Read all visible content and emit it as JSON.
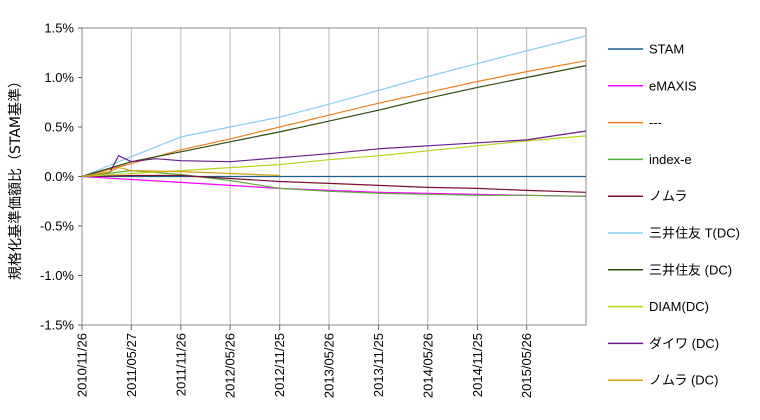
{
  "chart_data": {
    "type": "line",
    "title": "",
    "xlabel": "",
    "ylabel": "規格化基準価額比（STAM基準）",
    "ylim": [
      -1.5,
      1.5
    ],
    "y_ticks": [
      1.5,
      1.0,
      0.5,
      0.0,
      -0.5,
      -1.0,
      -1.5
    ],
    "y_tick_labels": [
      "1.5%",
      "1.0%",
      "0.5%",
      "0.0%",
      "-0.5%",
      "-1.0%",
      "-1.5%"
    ],
    "x_tick_labels": [
      "2010/11/26",
      "2011/05/27",
      "2011/11/26",
      "2012/05/26",
      "2012/11/25",
      "2013/05/26",
      "2013/11/25",
      "2014/05/26",
      "2014/11/25",
      "2015/05/26"
    ],
    "x_ticks": [
      "2010-11-26",
      "2011-05-27",
      "2011-11-26",
      "2012-05-26",
      "2012-11-25",
      "2013-05-26",
      "2013-11-25",
      "2014-05-26",
      "2014-11-25",
      "2015-05-26"
    ],
    "x_range": [
      "2010-11-26",
      "2015-12-31"
    ],
    "grid": "vertical",
    "legend_position": "right",
    "series": [
      {
        "name": "STAM",
        "color": "#1f5f8b",
        "points": [
          [
            "2010-11-26",
            0.0
          ],
          [
            "2015-12-31",
            0.0
          ]
        ]
      },
      {
        "name": "eMAXIS",
        "color": "#ff00ff",
        "points": [
          [
            "2010-11-26",
            0.0
          ],
          [
            "2011-05-27",
            -0.03
          ],
          [
            "2011-11-26",
            -0.06
          ],
          [
            "2012-05-26",
            -0.09
          ],
          [
            "2012-11-25",
            -0.12
          ],
          [
            "2013-05-26",
            -0.14
          ],
          [
            "2013-11-25",
            -0.16
          ],
          [
            "2014-05-26",
            -0.17
          ],
          [
            "2014-11-25",
            -0.18
          ],
          [
            "2015-05-26",
            -0.19
          ],
          [
            "2015-12-31",
            -0.2
          ]
        ]
      },
      {
        "name": "---",
        "color": "#f08020",
        "points": [
          [
            "2010-11-26",
            0.0
          ],
          [
            "2011-05-27",
            0.13
          ],
          [
            "2011-11-26",
            0.27
          ],
          [
            "2012-05-26",
            0.38
          ],
          [
            "2012-11-25",
            0.5
          ],
          [
            "2013-05-26",
            0.62
          ],
          [
            "2013-11-25",
            0.74
          ],
          [
            "2014-05-26",
            0.85
          ],
          [
            "2014-11-25",
            0.96
          ],
          [
            "2015-05-26",
            1.06
          ],
          [
            "2015-12-31",
            1.17
          ]
        ]
      },
      {
        "name": "index-e",
        "color": "#5aaa3c",
        "points": [
          [
            "2010-11-26",
            0.0
          ],
          [
            "2011-05-27",
            0.06
          ],
          [
            "2011-11-26",
            0.02
          ],
          [
            "2012-05-26",
            -0.04
          ],
          [
            "2012-11-25",
            -0.12
          ],
          [
            "2013-05-26",
            -0.15
          ],
          [
            "2013-11-25",
            -0.17
          ],
          [
            "2014-05-26",
            -0.18
          ],
          [
            "2014-11-25",
            -0.19
          ],
          [
            "2015-05-26",
            -0.19
          ],
          [
            "2015-12-31",
            -0.2
          ]
        ]
      },
      {
        "name": "ノムラ",
        "color": "#7a1030",
        "points": [
          [
            "2010-11-26",
            0.0
          ],
          [
            "2011-05-27",
            0.01
          ],
          [
            "2011-11-26",
            0.01
          ],
          [
            "2012-05-26",
            -0.02
          ],
          [
            "2012-11-25",
            -0.05
          ],
          [
            "2013-05-26",
            -0.07
          ],
          [
            "2013-11-25",
            -0.09
          ],
          [
            "2014-05-26",
            -0.11
          ],
          [
            "2014-11-25",
            -0.12
          ],
          [
            "2015-05-26",
            -0.14
          ],
          [
            "2015-12-31",
            -0.16
          ]
        ]
      },
      {
        "name": "三井住友 T(DC)",
        "color": "#87cdf0",
        "points": [
          [
            "2010-11-26",
            0.0
          ],
          [
            "2011-05-27",
            0.2
          ],
          [
            "2011-11-26",
            0.4
          ],
          [
            "2012-05-26",
            0.5
          ],
          [
            "2012-11-25",
            0.6
          ],
          [
            "2013-05-26",
            0.73
          ],
          [
            "2013-11-25",
            0.87
          ],
          [
            "2014-05-26",
            1.01
          ],
          [
            "2014-11-25",
            1.14
          ],
          [
            "2015-05-26",
            1.27
          ],
          [
            "2015-12-31",
            1.42
          ]
        ]
      },
      {
        "name": "三井住友 (DC)",
        "color": "#2e4a12",
        "points": [
          [
            "2010-11-26",
            0.0
          ],
          [
            "2011-05-27",
            0.15
          ],
          [
            "2011-11-26",
            0.25
          ],
          [
            "2012-05-26",
            0.35
          ],
          [
            "2012-11-25",
            0.45
          ],
          [
            "2013-05-26",
            0.56
          ],
          [
            "2013-11-25",
            0.67
          ],
          [
            "2014-05-26",
            0.79
          ],
          [
            "2014-11-25",
            0.9
          ],
          [
            "2015-05-26",
            1.0
          ],
          [
            "2015-12-31",
            1.12
          ]
        ]
      },
      {
        "name": "DIAM(DC)",
        "color": "#b9d21e",
        "points": [
          [
            "2010-11-26",
            0.0
          ],
          [
            "2011-05-27",
            0.03
          ],
          [
            "2011-11-26",
            0.06
          ],
          [
            "2012-05-26",
            0.09
          ],
          [
            "2012-11-25",
            0.12
          ],
          [
            "2013-05-26",
            0.17
          ],
          [
            "2013-11-25",
            0.21
          ],
          [
            "2014-05-26",
            0.26
          ],
          [
            "2014-11-25",
            0.31
          ],
          [
            "2015-05-26",
            0.36
          ],
          [
            "2015-12-31",
            0.41
          ]
        ]
      },
      {
        "name": "ダイワ (DC)",
        "color": "#6a1a8a",
        "points": [
          [
            "2010-11-26",
            0.0
          ],
          [
            "2011-03-10",
            0.05
          ],
          [
            "2011-04-10",
            0.21
          ],
          [
            "2011-05-27",
            0.15
          ],
          [
            "2011-08-25",
            0.18
          ],
          [
            "2011-11-26",
            0.16
          ],
          [
            "2012-05-26",
            0.15
          ],
          [
            "2012-11-25",
            0.19
          ],
          [
            "2013-05-26",
            0.23
          ],
          [
            "2013-11-25",
            0.28
          ],
          [
            "2014-05-26",
            0.31
          ],
          [
            "2014-11-25",
            0.34
          ],
          [
            "2015-05-26",
            0.37
          ],
          [
            "2015-12-31",
            0.46
          ]
        ]
      },
      {
        "name": "ノムラ (DC)",
        "color": "#d4a017",
        "points": [
          [
            "2010-11-26",
            0.0
          ],
          [
            "2011-03-10",
            0.05
          ],
          [
            "2011-04-10",
            0.09
          ],
          [
            "2011-05-27",
            0.06
          ],
          [
            "2011-11-26",
            0.05
          ],
          [
            "2012-05-26",
            0.03
          ],
          [
            "2012-11-25",
            0.01
          ]
        ]
      }
    ]
  }
}
